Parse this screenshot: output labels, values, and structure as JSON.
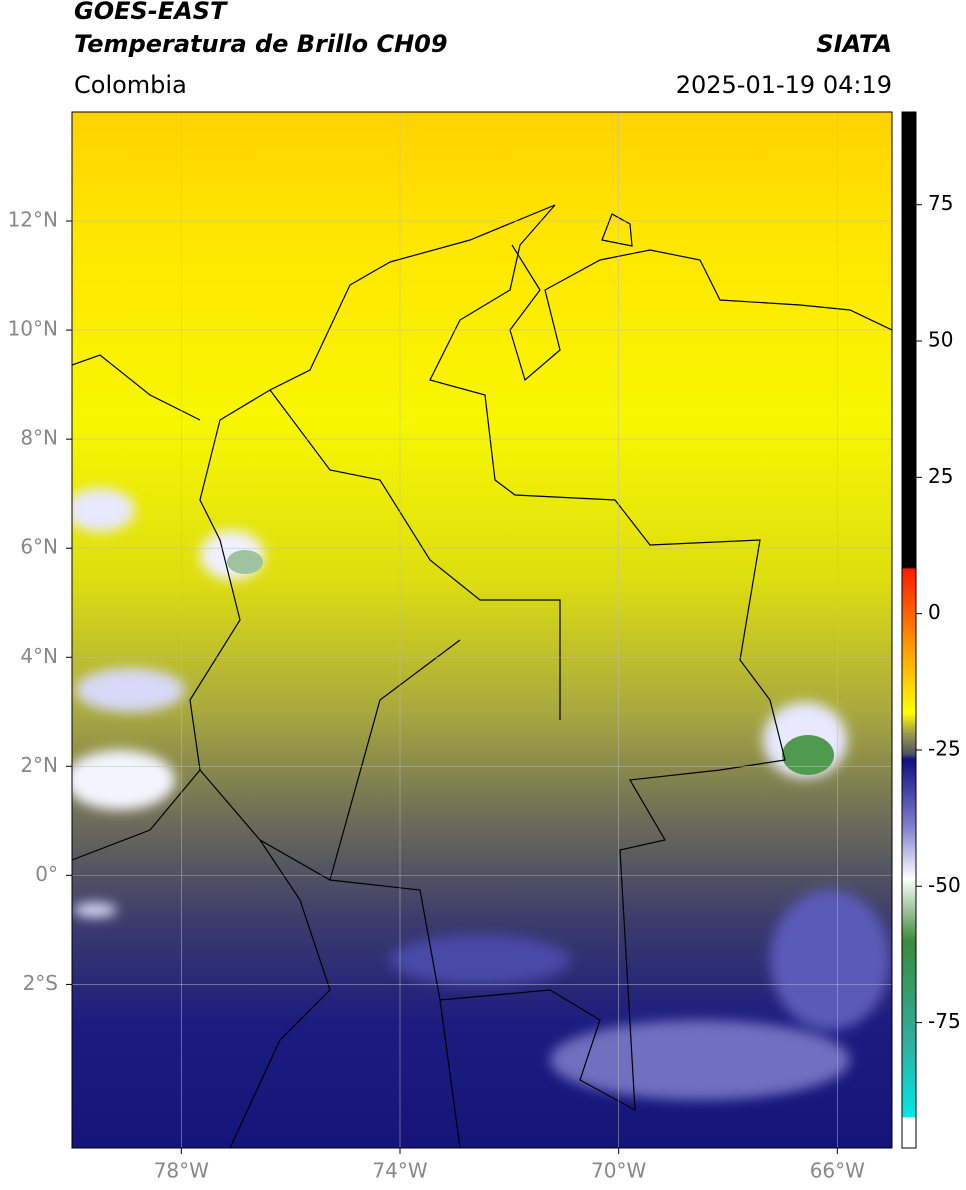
{
  "header": {
    "satellite": "GOES-EAST",
    "product": "Temperatura de Brillo CH09",
    "source": "SIATA",
    "region": "Colombia",
    "datetime": "2025-01-19 04:19"
  },
  "map": {
    "xlim": [
      -80,
      -65
    ],
    "ylim": [
      -5,
      14
    ],
    "xticks": [
      {
        "value": -78,
        "label": "78°W"
      },
      {
        "value": -74,
        "label": "74°W"
      },
      {
        "value": -70,
        "label": "70°W"
      },
      {
        "value": -66,
        "label": "66°W"
      }
    ],
    "yticks": [
      {
        "value": -2,
        "label": "2°S"
      },
      {
        "value": 0,
        "label": "0°"
      },
      {
        "value": 2,
        "label": "2°N"
      },
      {
        "value": 4,
        "label": "4°N"
      },
      {
        "value": 6,
        "label": "6°N"
      },
      {
        "value": 8,
        "label": "8°N"
      },
      {
        "value": 10,
        "label": "10°N"
      },
      {
        "value": 12,
        "label": "12°N"
      }
    ]
  },
  "colorbar": {
    "lim": [
      -98,
      92
    ],
    "ticks": [
      75,
      50,
      25,
      0,
      -25,
      -50,
      -75
    ]
  }
}
